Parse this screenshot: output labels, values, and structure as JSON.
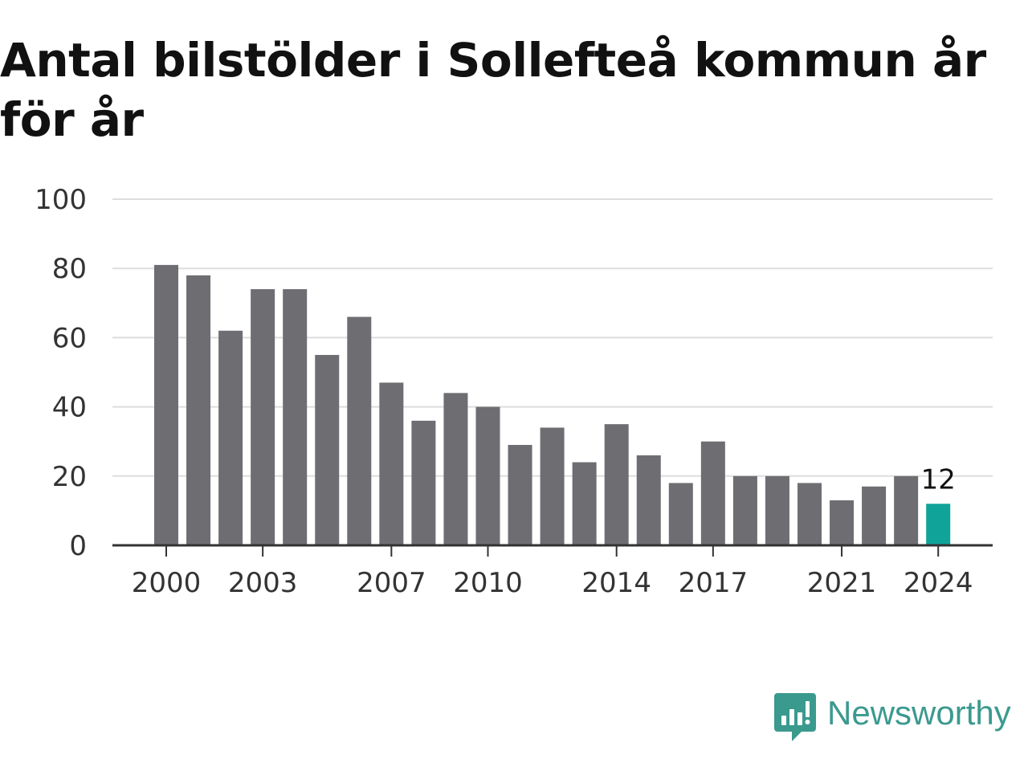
{
  "title": "Antal bilstölder i Sollefteå kommun år för år",
  "brand": {
    "name": "Newsworthy",
    "icon": "newsworthy-logo-icon"
  },
  "colors": {
    "bar": "#6e6d72",
    "highlight": "#0fa39a",
    "grid": "#dddddd",
    "axis": "#333333",
    "brand": "#3a9a8e"
  },
  "chart_data": {
    "type": "bar",
    "title": "Antal bilstölder i Sollefteå kommun år för år",
    "xlabel": "",
    "ylabel": "",
    "x": [
      2000,
      2001,
      2002,
      2003,
      2004,
      2005,
      2006,
      2007,
      2008,
      2009,
      2010,
      2011,
      2012,
      2013,
      2014,
      2015,
      2016,
      2017,
      2018,
      2019,
      2020,
      2021,
      2022,
      2023,
      2024
    ],
    "values": [
      81,
      78,
      62,
      74,
      74,
      55,
      66,
      47,
      36,
      44,
      40,
      29,
      34,
      24,
      35,
      26,
      18,
      30,
      20,
      20,
      18,
      13,
      17,
      20,
      12
    ],
    "ylim": [
      0,
      100
    ],
    "yticks": [
      0,
      20,
      40,
      60,
      80,
      100
    ],
    "xtick_labels": [
      "2000",
      "2003",
      "2007",
      "2010",
      "2014",
      "2017",
      "2021",
      "2024"
    ],
    "highlight": {
      "x": 2024,
      "label": "12"
    },
    "grid": true
  }
}
